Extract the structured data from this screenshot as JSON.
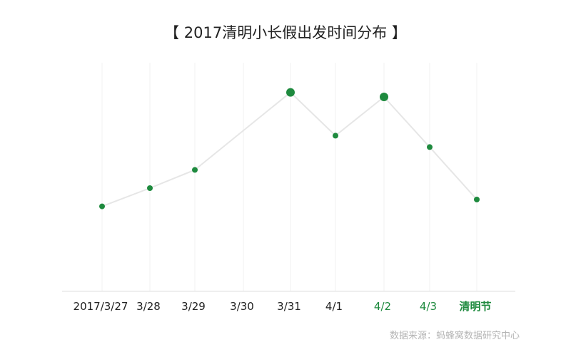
{
  "chart_data": {
    "type": "line",
    "title": "【 2017清明小长假出发时间分布 】",
    "categories": [
      "2017/3/27",
      "3/28",
      "3/29",
      "3/30",
      "3/31",
      "4/1",
      "4/2",
      "4/3",
      "清明节"
    ],
    "highlight_categories": [
      "4/2",
      "4/3",
      "清明节"
    ],
    "series": [
      {
        "values": [
          37,
          45,
          53,
          null,
          87,
          68,
          85,
          63,
          40
        ],
        "emphasized_points": [
          "3/31",
          "4/2"
        ]
      }
    ],
    "ylim": [
      0,
      100
    ],
    "grid": "vertical",
    "legend": "none",
    "colors": {
      "point": "#1e8a3e",
      "line": "#e6e6e6",
      "grid": "#f0f0f0",
      "axis": "#d9d9d9",
      "tick_text": "#222222",
      "highlight_tick_text": "#1e8a3e"
    }
  },
  "source": "数据来源：蚂蜂窝数据研究中心"
}
